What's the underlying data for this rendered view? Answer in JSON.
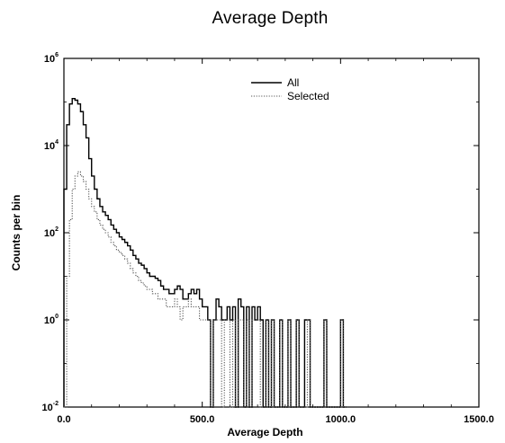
{
  "chart_data": {
    "type": "line",
    "title": "Average Depth",
    "xlabel": "Average Depth",
    "ylabel": "Counts per bin",
    "xlim": [
      0,
      1500
    ],
    "ylim": [
      0.01,
      1000000
    ],
    "yscale": "log",
    "grid": false,
    "legend_position": "top-center",
    "x_tick_labels": [
      "0.0",
      "500.0",
      "1000.0",
      "1500.0"
    ],
    "y_tick_labels": [
      {
        "base": "10",
        "exp": "6"
      },
      {
        "base": "10",
        "exp": "4"
      },
      {
        "base": "10",
        "exp": "2"
      },
      {
        "base": "10",
        "exp": "0"
      },
      {
        "base": "10",
        "exp": "-2"
      }
    ],
    "bin_width": 10,
    "series": [
      {
        "name": "All",
        "style": "solid",
        "color": "#000000",
        "x": [
          0,
          10,
          20,
          30,
          40,
          50,
          60,
          70,
          80,
          90,
          100,
          110,
          120,
          130,
          140,
          150,
          160,
          170,
          180,
          190,
          200,
          210,
          220,
          230,
          240,
          250,
          260,
          270,
          280,
          290,
          300,
          310,
          320,
          330,
          340,
          350,
          360,
          370,
          380,
          390,
          400,
          410,
          420,
          430,
          440,
          450,
          460,
          470,
          480,
          490,
          500,
          510,
          520,
          530,
          540,
          550,
          560,
          570,
          580,
          590,
          600,
          610,
          620,
          630,
          640,
          650,
          660,
          670,
          680,
          690,
          700,
          710,
          720,
          730,
          740,
          750,
          760,
          770,
          780,
          790,
          800,
          810,
          820,
          830,
          840,
          850,
          860,
          870,
          880,
          890,
          900,
          910,
          920,
          930,
          940,
          950,
          960,
          970,
          980,
          990,
          1000,
          1010
        ],
        "values": [
          1000,
          30000,
          90000,
          120000,
          110000,
          90000,
          60000,
          30000,
          15000,
          5000,
          2000,
          1000,
          600,
          400,
          300,
          250,
          200,
          150,
          120,
          100,
          80,
          70,
          60,
          50,
          40,
          30,
          25,
          20,
          18,
          15,
          12,
          10,
          10,
          9,
          8,
          6,
          5,
          5,
          4,
          4,
          5,
          6,
          5,
          3,
          3,
          4,
          5,
          4,
          5,
          3,
          2,
          2,
          1,
          0,
          1,
          3,
          2,
          1,
          1,
          2,
          1,
          2,
          0,
          3,
          2,
          0,
          2,
          0,
          2,
          1,
          2,
          1,
          0,
          1,
          0,
          1,
          0,
          0,
          1,
          0,
          0,
          1,
          0,
          0,
          1,
          0,
          0,
          1,
          1,
          0,
          0,
          0,
          0,
          0,
          1,
          0,
          0,
          0,
          0,
          0,
          1,
          0
        ]
      },
      {
        "name": "Selected",
        "style": "dotted",
        "color": "#555555",
        "x": [
          0,
          10,
          20,
          30,
          40,
          50,
          60,
          70,
          80,
          90,
          100,
          110,
          120,
          130,
          140,
          150,
          160,
          170,
          180,
          190,
          200,
          210,
          220,
          230,
          240,
          250,
          260,
          270,
          280,
          290,
          300,
          310,
          320,
          330,
          340,
          350,
          360,
          370,
          380,
          390,
          400,
          410,
          420,
          430,
          440,
          450,
          460,
          470,
          480,
          490,
          500,
          510,
          520,
          530,
          540,
          550,
          560,
          570,
          580,
          590,
          600,
          610,
          620,
          630,
          640,
          650,
          660,
          670,
          680,
          690,
          700,
          710,
          720,
          730,
          740,
          750,
          760,
          770,
          780,
          790,
          800,
          810,
          820,
          830,
          840,
          850,
          860,
          870,
          880,
          890,
          900,
          910,
          920,
          930,
          940,
          950,
          960,
          970,
          980,
          990,
          1000,
          1010
        ],
        "values": [
          0.01,
          10,
          200,
          1000,
          2000,
          2500,
          2000,
          1500,
          1000,
          600,
          400,
          300,
          200,
          150,
          120,
          100,
          80,
          60,
          50,
          40,
          35,
          30,
          25,
          20,
          15,
          12,
          10,
          8,
          7,
          6,
          5,
          5,
          4,
          4,
          3,
          3,
          3,
          2,
          2,
          2,
          3,
          2,
          1,
          2,
          2,
          3,
          2,
          2,
          2,
          1,
          1,
          1,
          1,
          0,
          1,
          1,
          1,
          0,
          1,
          1,
          0,
          1,
          0,
          1,
          1,
          0,
          1,
          0,
          1,
          1,
          1,
          0,
          0,
          1,
          0,
          1,
          0,
          0,
          1,
          0,
          0,
          1,
          0,
          0,
          1,
          0,
          0,
          0,
          1,
          0,
          0,
          0,
          0,
          0,
          1,
          0,
          0,
          0,
          0,
          0,
          1,
          0
        ]
      }
    ]
  }
}
